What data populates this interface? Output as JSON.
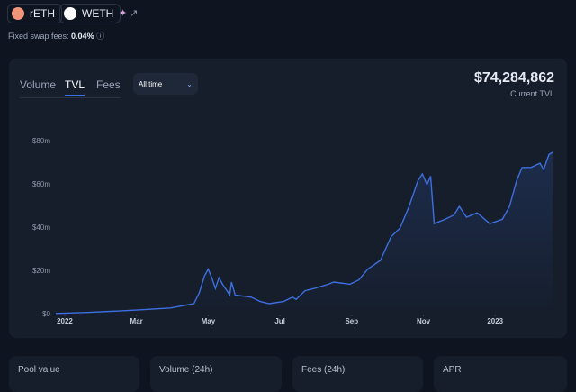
{
  "tokens": [
    "rETH",
    "WETH"
  ],
  "fees": {
    "label": "Fixed swap fees:",
    "value": "0.04%"
  },
  "tabs": [
    "Volume",
    "TVL",
    "Fees"
  ],
  "dropdown": "All time",
  "tvl": {
    "value": "$74,284,862",
    "label": "Current TVL"
  },
  "chart_data": {
    "type": "line",
    "x": [
      -0.25,
      0.7,
      1.95,
      2.95,
      3.6,
      3.75,
      3.9,
      4.0,
      4.1,
      4.2,
      4.3,
      4.4,
      4.6,
      4.65,
      4.75,
      5.2,
      5.45,
      5.7,
      6.1,
      6.35,
      6.45,
      6.7,
      6.95,
      7.35,
      7.5,
      7.95,
      8.2,
      8.45,
      8.8,
      9.1,
      9.35,
      9.6,
      9.85,
      9.97,
      10.1,
      10.2,
      10.3,
      10.6,
      10.85,
      11.0,
      11.2,
      11.5,
      11.85,
      12.2,
      12.4,
      12.6,
      12.75,
      13.0,
      13.25,
      13.35,
      13.5,
      13.6
    ],
    "series": [
      {
        "name": "TVL",
        "color": "#3d6fe0",
        "values": [
          0.5,
          1,
          2,
          3,
          5,
          10,
          18,
          21,
          17,
          12,
          17,
          14,
          9,
          15,
          9,
          8,
          6,
          5,
          6,
          8,
          7,
          11,
          12,
          14,
          15,
          14,
          16,
          21,
          25,
          36,
          40,
          50,
          62,
          65,
          60,
          64,
          42,
          44,
          46,
          50,
          45,
          47,
          42,
          44,
          50,
          62,
          68,
          68,
          70,
          67,
          74,
          75
        ]
      }
    ],
    "xlim": [
      -0.25,
      13.65
    ],
    "xticks": [
      {
        "value": 0,
        "label": "2022"
      },
      {
        "value": 2,
        "label": "Mar"
      },
      {
        "value": 4,
        "label": "May"
      },
      {
        "value": 6,
        "label": "Jul"
      },
      {
        "value": 8,
        "label": "Sep"
      },
      {
        "value": 10,
        "label": "Nov"
      },
      {
        "value": 12,
        "label": "2023"
      }
    ],
    "ylim": [
      0,
      80
    ],
    "yticks": [
      {
        "value": 0,
        "label": "$0"
      },
      {
        "value": 20,
        "label": "$20m"
      },
      {
        "value": 40,
        "label": "$40m"
      },
      {
        "value": 60,
        "label": "$60m"
      },
      {
        "value": 80,
        "label": "$80m"
      }
    ],
    "grid": false
  },
  "stats": [
    "Pool value",
    "Volume (24h)",
    "Fees (24h)",
    "APR"
  ]
}
